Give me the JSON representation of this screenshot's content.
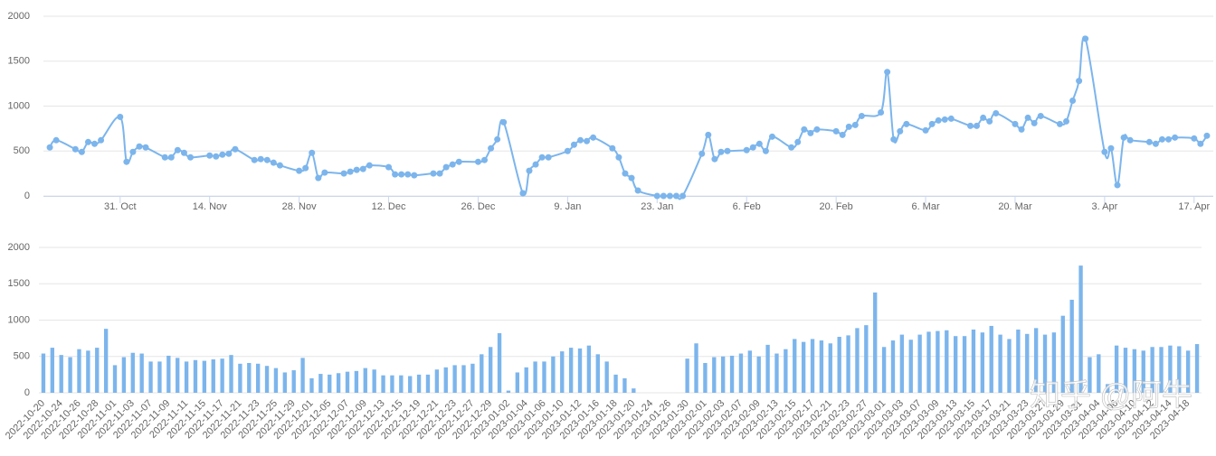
{
  "chart_data": [
    {
      "type": "line",
      "color": "#7cb5ec",
      "grid": true,
      "xlim": [
        "2022-10-19",
        "2023-04-20"
      ],
      "ylim": [
        0,
        2000
      ],
      "yticks": [
        0,
        500,
        1000,
        1500,
        2000
      ],
      "xticks": [
        {
          "value": "2022-10-31",
          "label": "31. Oct"
        },
        {
          "value": "2022-11-14",
          "label": "14. Nov"
        },
        {
          "value": "2022-11-28",
          "label": "28. Nov"
        },
        {
          "value": "2022-12-12",
          "label": "12. Dec"
        },
        {
          "value": "2022-12-26",
          "label": "26. Dec"
        },
        {
          "value": "2023-01-09",
          "label": "9. Jan"
        },
        {
          "value": "2023-01-23",
          "label": "23. Jan"
        },
        {
          "value": "2023-02-06",
          "label": "6. Feb"
        },
        {
          "value": "2023-02-20",
          "label": "20. Feb"
        },
        {
          "value": "2023-03-06",
          "label": "6. Mar"
        },
        {
          "value": "2023-03-20",
          "label": "20. Mar"
        },
        {
          "value": "2023-04-03",
          "label": "3. Apr"
        },
        {
          "value": "2023-04-17",
          "label": "17. Apr"
        }
      ],
      "x": [
        "2022-10-20",
        "2022-10-21",
        "2022-10-24",
        "2022-10-25",
        "2022-10-26",
        "2022-10-27",
        "2022-10-28",
        "2022-10-31",
        "2022-11-01",
        "2022-11-02",
        "2022-11-03",
        "2022-11-04",
        "2022-11-07",
        "2022-11-08",
        "2022-11-09",
        "2022-11-10",
        "2022-11-11",
        "2022-11-14",
        "2022-11-15",
        "2022-11-16",
        "2022-11-17",
        "2022-11-18",
        "2022-11-21",
        "2022-11-22",
        "2022-11-23",
        "2022-11-24",
        "2022-11-25",
        "2022-11-28",
        "2022-11-29",
        "2022-11-30",
        "2022-12-01",
        "2022-12-02",
        "2022-12-05",
        "2022-12-06",
        "2022-12-07",
        "2022-12-08",
        "2022-12-09",
        "2022-12-12",
        "2022-12-13",
        "2022-12-14",
        "2022-12-15",
        "2022-12-16",
        "2022-12-19",
        "2022-12-20",
        "2022-12-21",
        "2022-12-22",
        "2022-12-23",
        "2022-12-26",
        "2022-12-27",
        "2022-12-28",
        "2022-12-29",
        "2022-12-30",
        "2023-01-02",
        "2023-01-03",
        "2023-01-04",
        "2023-01-05",
        "2023-01-06",
        "2023-01-09",
        "2023-01-10",
        "2023-01-11",
        "2023-01-12",
        "2023-01-13",
        "2023-01-16",
        "2023-01-17",
        "2023-01-18",
        "2023-01-19",
        "2023-01-20",
        "2023-01-23",
        "2023-01-24",
        "2023-01-25",
        "2023-01-26",
        "2023-01-27",
        "2023-01-30",
        "2023-01-31",
        "2023-02-01",
        "2023-02-02",
        "2023-02-03",
        "2023-02-06",
        "2023-02-07",
        "2023-02-08",
        "2023-02-09",
        "2023-02-10",
        "2023-02-13",
        "2023-02-14",
        "2023-02-15",
        "2023-02-16",
        "2023-02-17",
        "2023-02-20",
        "2023-02-21",
        "2023-02-22",
        "2023-02-23",
        "2023-02-24",
        "2023-02-27",
        "2023-02-28",
        "2023-03-01",
        "2023-03-02",
        "2023-03-03",
        "2023-03-06",
        "2023-03-07",
        "2023-03-08",
        "2023-03-09",
        "2023-03-10",
        "2023-03-13",
        "2023-03-14",
        "2023-03-15",
        "2023-03-16",
        "2023-03-17",
        "2023-03-20",
        "2023-03-21",
        "2023-03-22",
        "2023-03-23",
        "2023-03-24",
        "2023-03-27",
        "2023-03-28",
        "2023-03-29",
        "2023-03-30",
        "2023-03-31",
        "2023-04-03",
        "2023-04-04",
        "2023-04-05",
        "2023-04-06",
        "2023-04-07",
        "2023-04-10",
        "2023-04-11",
        "2023-04-12",
        "2023-04-13",
        "2023-04-14",
        "2023-04-17",
        "2023-04-18",
        "2023-04-19"
      ],
      "values": [
        540,
        620,
        520,
        490,
        600,
        580,
        620,
        880,
        380,
        490,
        550,
        540,
        430,
        430,
        510,
        480,
        430,
        450,
        440,
        460,
        470,
        520,
        400,
        410,
        400,
        370,
        340,
        280,
        310,
        480,
        200,
        260,
        250,
        270,
        290,
        300,
        340,
        320,
        240,
        240,
        240,
        230,
        250,
        250,
        320,
        350,
        380,
        380,
        400,
        530,
        630,
        820,
        30,
        280,
        350,
        430,
        430,
        500,
        570,
        620,
        610,
        650,
        530,
        430,
        250,
        200,
        60,
        0,
        0,
        0,
        0,
        0,
        470,
        680,
        410,
        490,
        500,
        510,
        540,
        580,
        500,
        660,
        540,
        600,
        740,
        700,
        740,
        720,
        680,
        770,
        790,
        890,
        930,
        1380,
        630,
        720,
        800,
        730,
        800,
        840,
        850,
        860,
        780,
        780,
        870,
        830,
        920,
        800,
        740,
        870,
        810,
        890,
        800,
        830,
        1060,
        1280,
        1750,
        490,
        530,
        120,
        650,
        620,
        600,
        580,
        630,
        630,
        650,
        640,
        580,
        670
      ]
    },
    {
      "type": "bar",
      "color": "#7cb5ec",
      "grid": true,
      "ylim": [
        0,
        2000
      ],
      "yticks": [
        0,
        500,
        1000,
        1500,
        2000
      ],
      "categories": [
        "2022-10-20",
        null,
        "2022-10-24",
        null,
        "2022-10-26",
        null,
        "2022-10-28",
        null,
        "2022-11-01",
        null,
        "2022-11-03",
        null,
        "2022-11-07",
        null,
        "2022-11-09",
        null,
        "2022-11-11",
        null,
        "2022-11-15",
        null,
        "2022-11-17",
        null,
        "2022-11-21",
        null,
        "2022-11-23",
        null,
        "2022-11-25",
        null,
        "2022-11-29",
        null,
        "2022-12-01",
        null,
        "2022-12-05",
        null,
        "2022-12-07",
        null,
        "2022-12-09",
        null,
        "2022-12-13",
        null,
        "2022-12-15",
        null,
        "2022-12-19",
        null,
        "2022-12-21",
        null,
        "2022-12-23",
        null,
        "2022-12-27",
        null,
        "2022-12-29",
        null,
        "2023-01-02",
        null,
        "2023-01-04",
        null,
        "2023-01-06",
        null,
        "2023-01-10",
        null,
        "2023-01-12",
        null,
        "2023-01-16",
        null,
        "2023-01-18",
        null,
        "2023-01-20",
        null,
        "2023-01-24",
        null,
        "2023-01-26",
        null,
        "2023-01-30",
        null,
        "2023-02-01",
        null,
        "2023-02-03",
        null,
        "2023-02-07",
        null,
        "2023-02-09",
        null,
        "2023-02-13",
        null,
        "2023-02-15",
        null,
        "2023-02-17",
        null,
        "2023-02-21",
        null,
        "2023-02-23",
        null,
        "2023-02-27",
        null,
        "2023-03-01",
        null,
        "2023-03-03",
        null,
        "2023-03-07",
        null,
        "2023-03-09",
        null,
        "2023-03-13",
        null,
        "2023-03-15",
        null,
        "2023-03-17",
        null,
        "2023-03-21",
        null,
        "2023-03-23",
        null,
        "2023-03-27",
        null,
        "2023-03-29",
        null,
        "2023-03-31",
        null,
        "2023-04-04",
        null,
        "2023-04-06",
        null,
        "2023-04-10",
        null,
        "2023-04-12",
        null,
        "2023-04-14",
        null,
        "2023-04-18",
        null
      ],
      "values": [
        540,
        620,
        520,
        490,
        600,
        580,
        620,
        880,
        380,
        490,
        550,
        540,
        430,
        430,
        510,
        480,
        430,
        450,
        440,
        460,
        470,
        520,
        400,
        410,
        400,
        370,
        340,
        280,
        310,
        480,
        200,
        260,
        250,
        270,
        290,
        300,
        340,
        320,
        240,
        240,
        240,
        230,
        250,
        250,
        320,
        350,
        380,
        380,
        400,
        530,
        630,
        820,
        30,
        280,
        350,
        430,
        430,
        500,
        570,
        620,
        610,
        650,
        530,
        430,
        250,
        200,
        60,
        0,
        0,
        0,
        0,
        0,
        470,
        680,
        410,
        490,
        500,
        510,
        540,
        580,
        500,
        660,
        540,
        600,
        740,
        700,
        740,
        720,
        680,
        770,
        790,
        890,
        930,
        1380,
        630,
        720,
        800,
        730,
        800,
        840,
        850,
        860,
        780,
        780,
        870,
        830,
        920,
        800,
        740,
        870,
        810,
        890,
        800,
        830,
        1060,
        1280,
        1750,
        490,
        530,
        120,
        650,
        620,
        600,
        580,
        630,
        630,
        650,
        640,
        580,
        670
      ],
      "watermark": "知乎 @阿牛"
    }
  ]
}
